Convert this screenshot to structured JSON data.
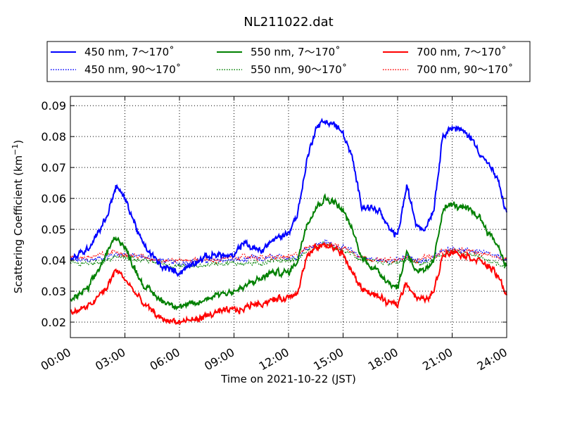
{
  "chart_data": {
    "type": "line",
    "title": "NL211022.dat",
    "xlabel": "Time on 2021-10-22 (JST)",
    "ylabel": "Scattering Coefficient (km",
    "ylabel_sup": "−1",
    "ylabel_end": ")",
    "xlim": [
      "00:00",
      "24:00"
    ],
    "ylim": [
      0.015,
      0.093
    ],
    "grid": true,
    "legend_position": "top",
    "x_ticks": [
      "00:00",
      "03:00",
      "06:00",
      "09:00",
      "12:00",
      "15:00",
      "18:00",
      "21:00",
      "24:00"
    ],
    "y_ticks": [
      "0.02",
      "0.03",
      "0.04",
      "0.05",
      "0.06",
      "0.07",
      "0.08",
      "0.09"
    ],
    "x_hours": [
      0,
      1,
      2,
      2.5,
      3,
      4,
      5,
      6,
      7,
      8,
      9,
      9.5,
      10,
      10.5,
      11,
      12,
      12.5,
      13,
      13.5,
      14,
      14.5,
      15,
      15.5,
      16,
      17,
      17.5,
      18,
      18.5,
      19,
      19.5,
      20,
      20.5,
      21,
      21.5,
      22,
      22.5,
      23,
      23.5,
      24
    ],
    "series": [
      {
        "name": "450 nm, 7～170˚",
        "color": "#0000ff",
        "style": "solid",
        "values": [
          0.04,
          0.044,
          0.054,
          0.064,
          0.06,
          0.045,
          0.038,
          0.036,
          0.04,
          0.042,
          0.041,
          0.046,
          0.044,
          0.043,
          0.046,
          0.049,
          0.055,
          0.072,
          0.083,
          0.085,
          0.084,
          0.081,
          0.073,
          0.058,
          0.056,
          0.05,
          0.048,
          0.064,
          0.052,
          0.05,
          0.057,
          0.081,
          0.083,
          0.082,
          0.08,
          0.075,
          0.071,
          0.066,
          0.055
        ]
      },
      {
        "name": "550 nm, 7～170˚",
        "color": "#008000",
        "style": "solid",
        "values": [
          0.027,
          0.031,
          0.042,
          0.048,
          0.044,
          0.032,
          0.027,
          0.025,
          0.026,
          0.029,
          0.03,
          0.031,
          0.033,
          0.034,
          0.036,
          0.036,
          0.04,
          0.052,
          0.057,
          0.06,
          0.059,
          0.056,
          0.05,
          0.041,
          0.036,
          0.033,
          0.031,
          0.043,
          0.037,
          0.036,
          0.04,
          0.057,
          0.058,
          0.057,
          0.056,
          0.054,
          0.049,
          0.045,
          0.038
        ]
      },
      {
        "name": "700 nm, 7～170˚",
        "color": "#ff0000",
        "style": "solid",
        "values": [
          0.023,
          0.025,
          0.031,
          0.037,
          0.034,
          0.026,
          0.021,
          0.02,
          0.021,
          0.023,
          0.024,
          0.024,
          0.026,
          0.026,
          0.027,
          0.028,
          0.03,
          0.041,
          0.044,
          0.045,
          0.044,
          0.042,
          0.036,
          0.031,
          0.028,
          0.026,
          0.026,
          0.033,
          0.028,
          0.027,
          0.03,
          0.042,
          0.043,
          0.042,
          0.041,
          0.04,
          0.038,
          0.035,
          0.029
        ]
      },
      {
        "name": "450 nm, 90～170˚",
        "color": "#0000ff",
        "style": "dotted",
        "values": [
          0.04,
          0.04,
          0.041,
          0.042,
          0.042,
          0.041,
          0.04,
          0.039,
          0.04,
          0.04,
          0.04,
          0.04,
          0.041,
          0.04,
          0.041,
          0.041,
          0.041,
          0.044,
          0.045,
          0.046,
          0.045,
          0.044,
          0.043,
          0.041,
          0.04,
          0.04,
          0.04,
          0.041,
          0.04,
          0.04,
          0.041,
          0.043,
          0.044,
          0.043,
          0.043,
          0.043,
          0.042,
          0.041,
          0.04
        ]
      },
      {
        "name": "550 nm, 90～170˚",
        "color": "#008000",
        "style": "dotted",
        "values": [
          0.039,
          0.039,
          0.04,
          0.041,
          0.041,
          0.04,
          0.039,
          0.038,
          0.038,
          0.039,
          0.039,
          0.039,
          0.039,
          0.039,
          0.04,
          0.04,
          0.04,
          0.043,
          0.044,
          0.045,
          0.044,
          0.043,
          0.042,
          0.04,
          0.039,
          0.039,
          0.039,
          0.04,
          0.039,
          0.039,
          0.04,
          0.042,
          0.043,
          0.042,
          0.042,
          0.041,
          0.04,
          0.039,
          0.038
        ]
      },
      {
        "name": "700 nm, 90～170˚",
        "color": "#ff0000",
        "style": "dotted",
        "values": [
          0.041,
          0.041,
          0.042,
          0.043,
          0.042,
          0.041,
          0.04,
          0.04,
          0.04,
          0.04,
          0.041,
          0.041,
          0.041,
          0.041,
          0.041,
          0.041,
          0.042,
          0.044,
          0.045,
          0.045,
          0.045,
          0.044,
          0.043,
          0.041,
          0.04,
          0.04,
          0.04,
          0.041,
          0.04,
          0.041,
          0.041,
          0.043,
          0.043,
          0.043,
          0.043,
          0.042,
          0.042,
          0.041,
          0.041
        ]
      }
    ]
  }
}
